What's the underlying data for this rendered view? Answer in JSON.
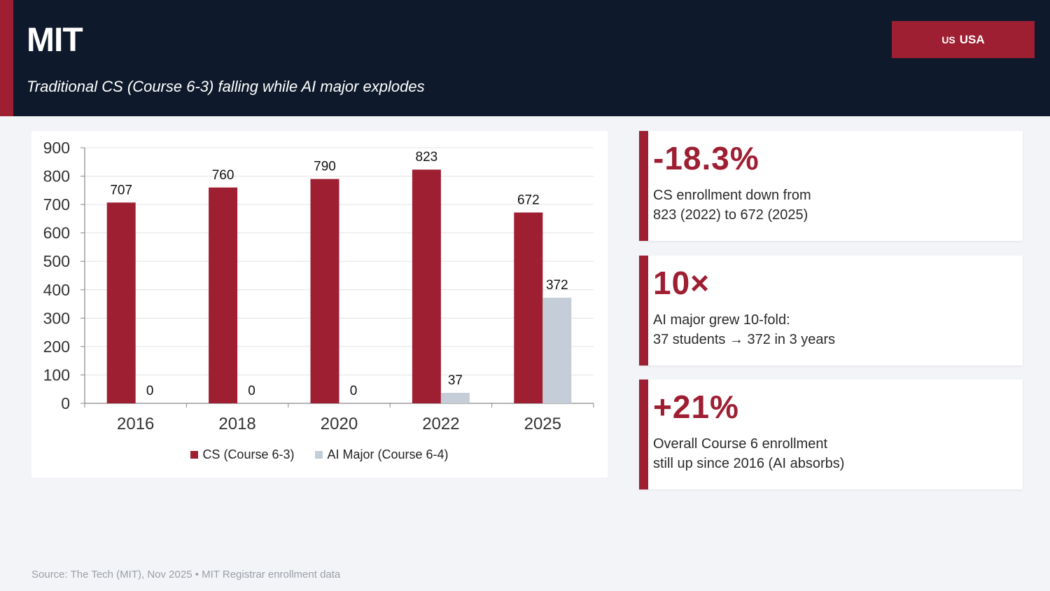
{
  "header": {
    "title": "MIT",
    "subtitle": "Traditional CS (Course 6-3) falling while AI major explodes",
    "country_flag": "US",
    "country_name": "USA"
  },
  "colors": {
    "accent": "#9e1e32",
    "header_bg": "#0e1a2b",
    "ai_series": "#c5ced8"
  },
  "chart_data": {
    "type": "bar",
    "categories": [
      "2016",
      "2018",
      "2020",
      "2022",
      "2025"
    ],
    "series": [
      {
        "name": "CS (Course 6-3)",
        "values": [
          707,
          760,
          790,
          823,
          672
        ],
        "color": "#9e1e32"
      },
      {
        "name": "AI Major (Course 6-4)",
        "values": [
          0,
          0,
          0,
          37,
          372
        ],
        "color": "#c5ced8"
      }
    ],
    "ylim": [
      0,
      900
    ],
    "yticks": [
      0,
      100,
      200,
      300,
      400,
      500,
      600,
      700,
      800,
      900
    ],
    "grid": true,
    "legend": "bottom-center",
    "xlabel": "",
    "ylabel": ""
  },
  "stats": [
    {
      "value": "-18.3%",
      "line1": "CS enrollment down from",
      "line2": "823 (2022) to 672 (2025)"
    },
    {
      "value": "10×",
      "line1": "AI major grew 10-fold:",
      "line2": "37 students → 372 in 3 years"
    },
    {
      "value": "+21%",
      "line1": "Overall Course 6 enrollment",
      "line2": "still up since 2016 (AI absorbs)"
    }
  ],
  "source": "Source: The Tech (MIT), Nov 2025 • MIT Registrar enrollment data"
}
